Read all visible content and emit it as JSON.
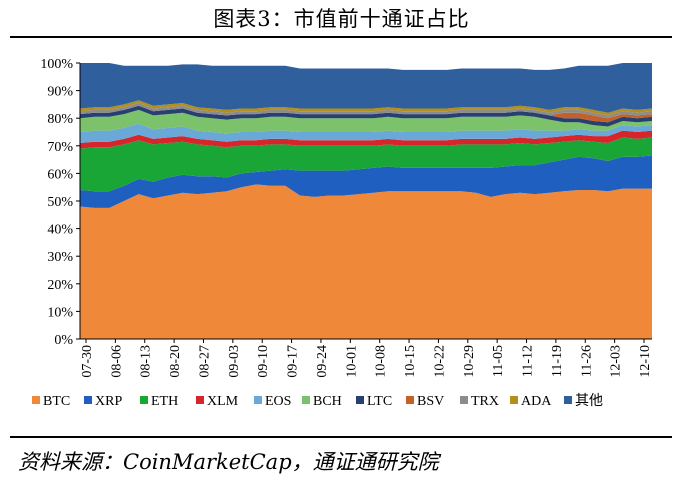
{
  "title": "图表3：市值前十通证占比",
  "source": "资料来源：CoinMarketCap，通证通研究院",
  "chart_data": {
    "type": "area",
    "stacked": true,
    "title": "",
    "xlabel": "",
    "ylabel": "",
    "ylim": [
      0,
      100
    ],
    "y_ticks": [
      "0%",
      "10%",
      "20%",
      "30%",
      "40%",
      "50%",
      "60%",
      "70%",
      "80%",
      "90%",
      "100%"
    ],
    "x_ticks": [
      "07-30",
      "08-06",
      "08-13",
      "08-20",
      "08-27",
      "09-03",
      "09-10",
      "09-17",
      "09-24",
      "10-01",
      "10-08",
      "10-15",
      "10-22",
      "10-29",
      "11-05",
      "11-12",
      "11-19",
      "11-26",
      "12-03",
      "12-10"
    ],
    "legend_position": "bottom",
    "x": [
      "07-30",
      "08-02",
      "08-06",
      "08-09",
      "08-13",
      "08-16",
      "08-20",
      "08-23",
      "08-27",
      "08-30",
      "09-03",
      "09-06",
      "09-10",
      "09-13",
      "09-17",
      "09-20",
      "09-24",
      "09-27",
      "10-01",
      "10-04",
      "10-08",
      "10-11",
      "10-15",
      "10-18",
      "10-22",
      "10-25",
      "10-29",
      "11-01",
      "11-05",
      "11-08",
      "11-12",
      "11-15",
      "11-19",
      "11-22",
      "11-26",
      "11-29",
      "12-03",
      "12-06",
      "12-10",
      "12-14"
    ],
    "series": [
      {
        "name": "BTC",
        "color": "#f0883a",
        "values": [
          48,
          47.5,
          47.5,
          50,
          52.5,
          51,
          52,
          53,
          52.5,
          53,
          53.5,
          55,
          56,
          55.5,
          55.5,
          52,
          51.5,
          52,
          52,
          52.5,
          53,
          53.5,
          53.5,
          53.5,
          53.5,
          53.5,
          53.5,
          53,
          51.5,
          52.5,
          53,
          52.5,
          53,
          53.5,
          54,
          54,
          53.5,
          54.5,
          54.5,
          54.5
        ]
      },
      {
        "name": "XRP",
        "color": "#1f5fbf",
        "values": [
          6,
          6,
          6,
          5.5,
          5.5,
          6,
          6.5,
          6.5,
          6.5,
          6,
          5,
          5,
          4.5,
          5.5,
          6,
          9,
          9.5,
          9,
          9,
          9,
          9,
          9,
          8.5,
          8.5,
          8.5,
          8.5,
          8.5,
          9,
          10.5,
          10,
          10,
          10.5,
          11,
          11.5,
          12,
          11.5,
          11,
          11.5,
          11.5,
          12
        ]
      },
      {
        "name": "ETH",
        "color": "#1aa637",
        "values": [
          15,
          16,
          16,
          15,
          14,
          13.5,
          12.5,
          12,
          11.5,
          11,
          11,
          10,
          9.5,
          9.5,
          9,
          9,
          9,
          9,
          9,
          8.5,
          8,
          8,
          8,
          8,
          8,
          8,
          8.5,
          8.5,
          8.5,
          8,
          8,
          7.5,
          7,
          6.5,
          6,
          6,
          6.5,
          7,
          6.5,
          6.5
        ]
      },
      {
        "name": "XLM",
        "color": "#d7262b",
        "values": [
          2,
          2,
          2,
          2,
          2,
          2,
          2,
          2,
          2,
          2,
          2,
          2,
          2,
          2,
          2,
          2,
          2,
          2,
          2,
          2,
          2,
          2,
          2,
          2,
          2,
          2,
          2,
          2,
          2,
          2,
          2,
          2,
          2,
          2,
          2,
          2,
          2.5,
          2.5,
          2.5,
          2.5
        ]
      },
      {
        "name": "EOS",
        "color": "#6aa8d8",
        "values": [
          4,
          4,
          4,
          4,
          4,
          3.5,
          3.5,
          3.5,
          3,
          3,
          3,
          3,
          3,
          3,
          3,
          3,
          3,
          3,
          3,
          3,
          3,
          3,
          3,
          3,
          3,
          3,
          3,
          3,
          3,
          3,
          3,
          3,
          2.5,
          2,
          2,
          2,
          2,
          2,
          2,
          2
        ]
      },
      {
        "name": "BCH",
        "color": "#7cc26a",
        "values": [
          5,
          5,
          5,
          5,
          5,
          5,
          5,
          5,
          5,
          5,
          5,
          5,
          5,
          5,
          5,
          5,
          5,
          5,
          5,
          5,
          5,
          5,
          5,
          5,
          5,
          5,
          5,
          5,
          5,
          5,
          5,
          5,
          4,
          3,
          2.5,
          2,
          1.5,
          1.5,
          1.5,
          1.5
        ]
      },
      {
        "name": "LTC",
        "color": "#27406f",
        "values": [
          1.5,
          1.5,
          1.5,
          1.5,
          1.5,
          1.5,
          1.5,
          1.5,
          1.5,
          1.5,
          1.5,
          1.5,
          1.5,
          1.5,
          1.5,
          1.5,
          1.5,
          1.5,
          1.5,
          1.5,
          1.5,
          1.5,
          1.5,
          1.5,
          1.5,
          1.5,
          1.5,
          1.5,
          1.5,
          1.5,
          1.5,
          1.5,
          1.5,
          1.5,
          1.5,
          1.5,
          1.5,
          1.5,
          1.5,
          1.5
        ]
      },
      {
        "name": "BSV",
        "color": "#c4612a",
        "values": [
          0,
          0,
          0,
          0,
          0,
          0,
          0,
          0,
          0,
          0,
          0,
          0,
          0,
          0,
          0,
          0,
          0,
          0,
          0,
          0,
          0,
          0,
          0,
          0,
          0,
          0,
          0,
          0,
          0,
          0,
          0,
          0,
          0,
          2,
          2,
          2,
          1.5,
          1,
          1,
          1
        ]
      },
      {
        "name": "TRX",
        "color": "#8c8c8c",
        "values": [
          1,
          1,
          1,
          1,
          1,
          1,
          1,
          1,
          1,
          1,
          1,
          1,
          1,
          1,
          1,
          1,
          1,
          1,
          1,
          1,
          1,
          1,
          1,
          1,
          1,
          1,
          1,
          1,
          1,
          1,
          1,
          1,
          1,
          1,
          1,
          1,
          1,
          1,
          1,
          1
        ]
      },
      {
        "name": "ADA",
        "color": "#b38f1e",
        "values": [
          1,
          1,
          1,
          1,
          1,
          1,
          1,
          1,
          1,
          1,
          1,
          1,
          1,
          1,
          1,
          1,
          1,
          1,
          1,
          1,
          1,
          1,
          1,
          1,
          1,
          1,
          1,
          1,
          1,
          1,
          1,
          1,
          1,
          1,
          1,
          1,
          1,
          1,
          1,
          1
        ]
      },
      {
        "name": "其他",
        "color": "#2f609d",
        "values": [
          16.5,
          16,
          16,
          14,
          12.5,
          14.5,
          14,
          14,
          15.5,
          15.5,
          16,
          15.5,
          15.5,
          15,
          15,
          14.5,
          14.5,
          14.5,
          14.5,
          14.5,
          14.5,
          14,
          14,
          14,
          14,
          14,
          14,
          14,
          14,
          14,
          13.5,
          13.5,
          14.5,
          14,
          15,
          16,
          17,
          16.5,
          17,
          16.5
        ]
      }
    ]
  }
}
